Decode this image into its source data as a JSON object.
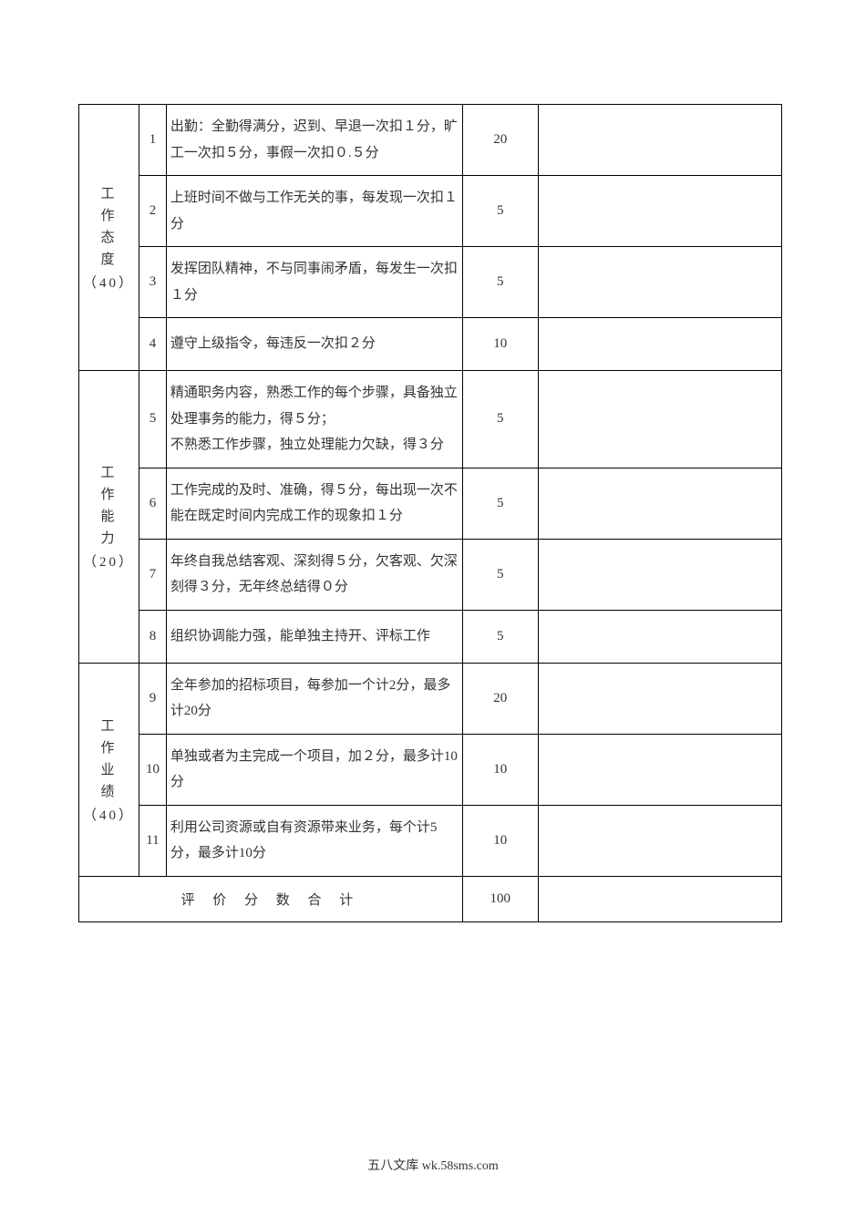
{
  "table": {
    "categories": [
      {
        "label": "工作态度",
        "weight": "（40）",
        "rows": [
          {
            "num": "1",
            "desc": "出勤：全勤得满分，迟到、早退一次扣１分，旷工一次扣５分，事假一次扣０.５分",
            "score": "20"
          },
          {
            "num": "2",
            "desc": "上班时间不做与工作无关的事，每发现一次扣１分",
            "score": "5"
          },
          {
            "num": "3",
            "desc": "发挥团队精神，不与同事闹矛盾，每发生一次扣１分",
            "score": "5"
          },
          {
            "num": "4",
            "desc": "遵守上级指令，每违反一次扣２分",
            "score": "10"
          }
        ]
      },
      {
        "label": "工作能力",
        "weight": "（20）",
        "rows": [
          {
            "num": "5",
            "desc": "精通职务内容，熟悉工作的每个步骤，具备独立处理事务的能力，得５分；\n不熟悉工作步骤，独立处理能力欠缺，得３分",
            "score": "5"
          },
          {
            "num": "6",
            "desc": "工作完成的及时、准确，得５分，每出现一次不能在既定时间内完成工作的现象扣１分",
            "score": "5"
          },
          {
            "num": "7",
            "desc": "年终自我总结客观、深刻得５分，欠客观、欠深刻得３分，无年终总结得０分",
            "score": "5"
          },
          {
            "num": "8",
            "desc": "组织协调能力强，能单独主持开、评标工作",
            "score": "5"
          }
        ]
      },
      {
        "label": "工作业绩",
        "weight": "（40）",
        "rows": [
          {
            "num": "9",
            "desc": "全年参加的招标项目，每参加一个计2分，最多计20分",
            "score": "20"
          },
          {
            "num": "10",
            "desc": "单独或者为主完成一个项目，加２分，最多计10 分",
            "score": "10"
          },
          {
            "num": "11",
            "desc": "利用公司资源或自有资源带来业务，每个计5分，最多计10分",
            "score": "10"
          }
        ]
      }
    ],
    "total": {
      "label": "评 价 分 数 合 计",
      "score": "100"
    }
  },
  "footer": "五八文库 wk.58sms.com"
}
